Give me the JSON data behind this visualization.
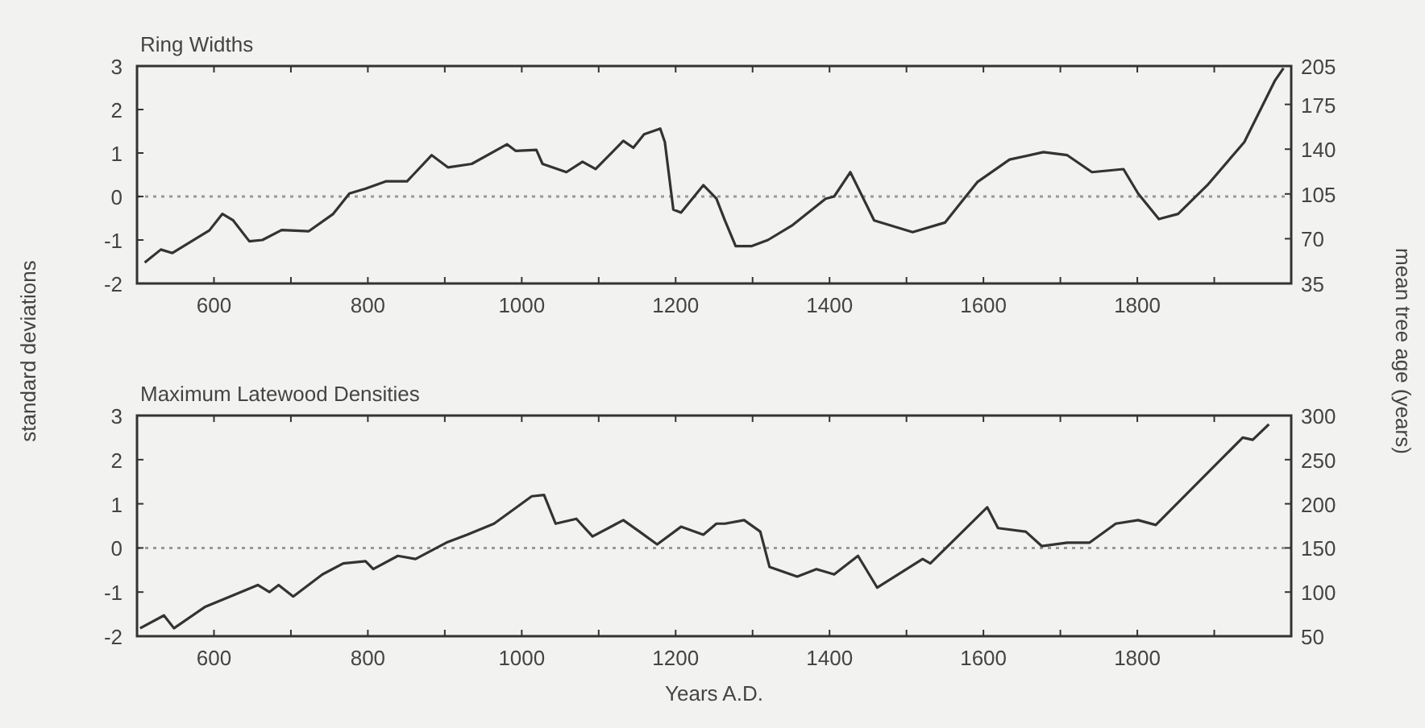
{
  "chart_data": [
    {
      "type": "line",
      "title": "Ring Widths",
      "ylabel": "standard deviations",
      "y2label": "mean tree age (years)",
      "xlim": [
        500,
        2000
      ],
      "xticks": [
        600,
        {
          "value": 700,
          "label": null
        },
        800,
        {
          "value": 900,
          "label": null
        },
        1000,
        {
          "value": 1100,
          "label": null
        },
        1200,
        {
          "value": 1300,
          "label": null
        },
        1400,
        {
          "value": 1500,
          "label": null
        },
        1600,
        {
          "value": 1700,
          "label": null
        },
        1800,
        {
          "value": 1900,
          "label": null
        }
      ],
      "ylim": [
        -2,
        3
      ],
      "yticks": [
        -2,
        -1,
        0,
        1,
        2,
        3
      ],
      "y2lim": [
        35,
        205
      ],
      "y2ticks": [
        35,
        70,
        105,
        140,
        175,
        205
      ],
      "ref_lines": [
        {
          "axis": "y",
          "value": 0,
          "line_style": "dotted",
          "color": "#999999"
        }
      ],
      "series": [
        {
          "color": "#333333",
          "x": [
            510,
            531,
            546,
            594,
            611,
            625,
            646,
            663,
            688,
            723,
            755,
            776,
            797,
            824,
            851,
            883,
            904,
            935,
            981,
            992,
            1019,
            1027,
            1058,
            1079,
            1096,
            1132,
            1145,
            1159,
            1180,
            1186,
            1197,
            1207,
            1236,
            1253,
            1264,
            1278,
            1299,
            1320,
            1351,
            1395,
            1406,
            1427,
            1458,
            1508,
            1550,
            1592,
            1634,
            1678,
            1709,
            1741,
            1782,
            1801,
            1828,
            1853,
            1891,
            1939,
            1979,
            1990
          ],
          "values": [
            -1.52,
            -1.22,
            -1.3,
            -0.78,
            -0.4,
            -0.55,
            -1.03,
            -1.0,
            -0.77,
            -0.8,
            -0.4,
            0.07,
            0.18,
            0.35,
            0.35,
            0.95,
            0.67,
            0.75,
            1.2,
            1.05,
            1.07,
            0.75,
            0.56,
            0.8,
            0.63,
            1.28,
            1.12,
            1.43,
            1.56,
            1.25,
            -0.3,
            -0.37,
            0.26,
            -0.05,
            -0.55,
            -1.14,
            -1.14,
            -1.0,
            -0.67,
            -0.05,
            0,
            0.56,
            -0.55,
            -0.82,
            -0.6,
            0.33,
            0.85,
            1.02,
            0.95,
            0.56,
            0.63,
            0.07,
            -0.52,
            -0.4,
            0.26,
            1.25,
            2.67,
            2.95
          ]
        }
      ]
    },
    {
      "type": "line",
      "title": "Maximum Latewood Densities",
      "xlabel": "Years A.D.",
      "xlim": [
        500,
        2000
      ],
      "xticks": [
        600,
        {
          "value": 700,
          "label": null
        },
        800,
        {
          "value": 900,
          "label": null
        },
        1000,
        {
          "value": 1100,
          "label": null
        },
        1200,
        {
          "value": 1300,
          "label": null
        },
        1400,
        {
          "value": 1500,
          "label": null
        },
        1600,
        {
          "value": 1700,
          "label": null
        },
        1800,
        {
          "value": 1900,
          "label": null
        }
      ],
      "ylim": [
        -2,
        3
      ],
      "yticks": [
        -2,
        -1,
        0,
        1,
        2,
        3
      ],
      "y2lim": [
        50,
        300
      ],
      "y2ticks": [
        50,
        100,
        150,
        200,
        250,
        300
      ],
      "ref_lines": [
        {
          "axis": "y",
          "value": 0,
          "line_style": "dotted",
          "color": "#999999"
        }
      ],
      "series": [
        {
          "color": "#333333",
          "x": [
            504,
            535,
            548,
            588,
            621,
            657,
            672,
            684,
            703,
            741,
            768,
            797,
            807,
            839,
            862,
            902,
            929,
            964,
            1013,
            1029,
            1044,
            1071,
            1092,
            1132,
            1153,
            1176,
            1207,
            1236,
            1253,
            1264,
            1289,
            1310,
            1322,
            1358,
            1383,
            1406,
            1437,
            1462,
            1521,
            1531,
            1605,
            1619,
            1655,
            1676,
            1709,
            1738,
            1772,
            1801,
            1824,
            1937,
            1950,
            1971
          ],
          "values": [
            -1.82,
            -1.53,
            -1.82,
            -1.34,
            -1.1,
            -0.84,
            -1.0,
            -0.84,
            -1.1,
            -0.6,
            -0.35,
            -0.3,
            -0.48,
            -0.18,
            -0.25,
            0.12,
            0.3,
            0.55,
            1.17,
            1.2,
            0.55,
            0.66,
            0.26,
            0.63,
            0.37,
            0.08,
            0.48,
            0.3,
            0.55,
            0.55,
            0.63,
            0.37,
            -0.43,
            -0.65,
            -0.48,
            -0.6,
            -0.18,
            -0.9,
            -0.25,
            -0.35,
            0.92,
            0.45,
            0.37,
            0.04,
            0.12,
            0.12,
            0.55,
            0.63,
            0.52,
            2.5,
            2.45,
            2.8
          ]
        }
      ]
    }
  ]
}
